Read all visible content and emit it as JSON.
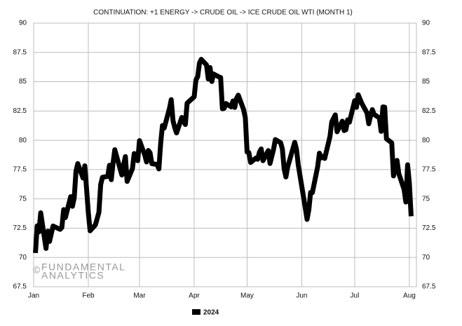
{
  "chart_data": {
    "type": "line",
    "title": "CONTINUATION: +1 ENERGY -> CRUDE OIL -> ICE CRUDE OIL WTI (MONTH 1)",
    "watermark": {
      "symbol": "©",
      "lines": [
        "FUNDAMENTAL",
        "ANALYTICS"
      ]
    },
    "x": [
      1,
      2,
      3,
      4,
      7,
      8,
      9,
      10,
      11,
      15,
      16,
      17,
      18,
      21,
      22,
      23,
      24,
      25,
      28,
      29,
      30,
      31,
      32,
      35,
      36,
      37,
      38,
      39,
      42,
      43,
      44,
      45,
      46,
      50,
      51,
      52,
      53,
      56,
      57,
      58,
      59,
      60,
      63,
      64,
      65,
      66,
      67,
      70,
      71,
      72,
      73,
      74,
      77,
      78,
      79,
      80,
      81,
      84,
      85,
      86,
      87,
      91,
      92,
      93,
      94,
      95,
      98,
      99,
      100,
      101,
      102,
      105,
      106,
      107,
      108,
      109,
      112,
      113,
      114,
      115,
      116,
      119,
      120,
      121,
      122,
      123,
      126,
      127,
      128,
      129,
      130,
      133,
      134,
      135,
      136,
      137,
      140,
      141,
      142,
      143,
      144,
      148,
      149,
      150,
      151,
      154,
      155,
      156,
      157,
      158,
      161,
      162,
      163,
      164,
      165,
      168,
      169,
      171,
      172,
      175,
      176,
      177,
      178,
      179,
      182,
      183,
      184,
      186,
      189,
      190,
      191,
      192,
      193,
      196,
      197,
      198,
      199,
      200,
      203,
      204,
      205,
      206,
      207,
      210,
      211,
      212,
      213,
      214
    ],
    "series": [
      {
        "name": "2024",
        "color": "#000000",
        "values": [
          70.38,
          72.7,
          72.19,
          73.81,
          70.77,
          72.24,
          71.37,
          72.02,
          72.68,
          72.4,
          72.56,
          74.08,
          73.41,
          75.19,
          74.37,
          75.09,
          77.36,
          78.01,
          76.78,
          77.82,
          75.85,
          73.82,
          72.28,
          72.78,
          73.31,
          73.86,
          76.22,
          76.84,
          76.92,
          77.87,
          76.64,
          78.03,
          79.19,
          77.04,
          77.91,
          78.61,
          76.49,
          77.58,
          78.87,
          78.54,
          78.26,
          79.97,
          78.74,
          78.15,
          79.13,
          78.93,
          78.01,
          77.93,
          77.56,
          79.72,
          81.26,
          81.04,
          82.72,
          83.47,
          81.68,
          81.07,
          80.63,
          81.95,
          81.62,
          81.35,
          83.17,
          83.71,
          85.15,
          85.43,
          86.59,
          86.91,
          86.43,
          85.23,
          86.21,
          85.02,
          85.66,
          85.41,
          85.36,
          82.69,
          82.73,
          83.14,
          82.85,
          83.36,
          82.81,
          83.57,
          83.85,
          82.63,
          81.93,
          79.0,
          78.95,
          78.11,
          78.48,
          78.38,
          78.99,
          79.26,
          78.26,
          79.12,
          78.02,
          78.63,
          79.23,
          80.06,
          79.8,
          79.26,
          77.57,
          76.87,
          77.72,
          79.83,
          79.23,
          77.91,
          76.99,
          74.22,
          73.25,
          74.07,
          75.55,
          75.53,
          77.74,
          78.9,
          78.5,
          78.62,
          78.45,
          80.33,
          81.57,
          82.17,
          80.73,
          81.63,
          80.83,
          80.9,
          81.74,
          81.54,
          83.38,
          82.81,
          83.88,
          83.16,
          82.33,
          81.41,
          82.1,
          82.62,
          82.21,
          81.91,
          80.76,
          82.85,
          82.82,
          80.13,
          79.78,
          76.96,
          77.59,
          78.28,
          77.16,
          75.81,
          74.73,
          77.91,
          76.31,
          73.52
        ]
      }
    ],
    "xlim": [
      0,
      217
    ],
    "xticks": [
      {
        "value": 0,
        "label": "Jan"
      },
      {
        "value": 31,
        "label": "Feb"
      },
      {
        "value": 60,
        "label": "Mar"
      },
      {
        "value": 91,
        "label": "Apr"
      },
      {
        "value": 121,
        "label": "May"
      },
      {
        "value": 152,
        "label": "Jun"
      },
      {
        "value": 182,
        "label": "Jul"
      },
      {
        "value": 213,
        "label": "Aug"
      }
    ],
    "ylim": [
      67.5,
      90
    ],
    "yticks": [
      67.5,
      70,
      72.5,
      75,
      77.5,
      80,
      82.5,
      85,
      87.5,
      90
    ],
    "y2lim": [
      67.5,
      90
    ],
    "y2ticks": [
      67.5,
      70,
      72.5,
      75,
      77.5,
      80,
      82.5,
      85,
      87.5,
      90
    ],
    "grid": true,
    "legend": "bottom"
  }
}
